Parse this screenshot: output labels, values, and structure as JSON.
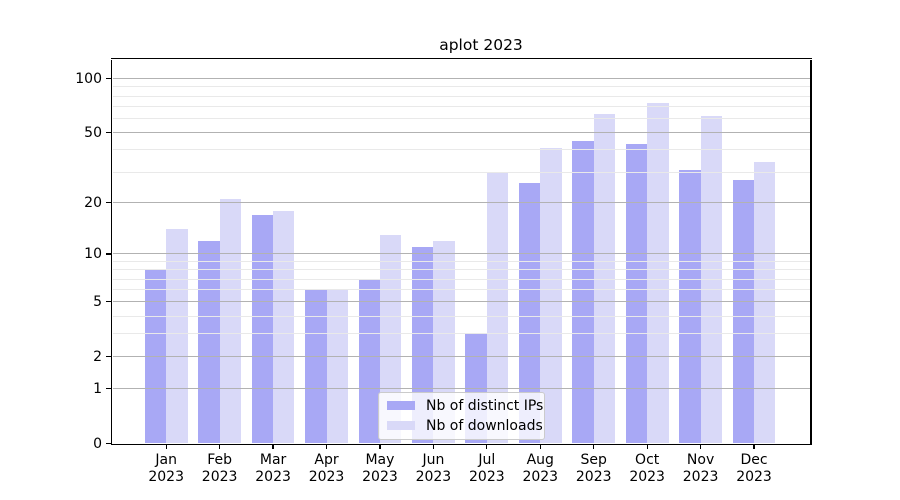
{
  "figure": {
    "background": "#ffffff"
  },
  "chart_data": {
    "type": "bar",
    "title": "aplot 2023",
    "categories": [
      "Jan",
      "Feb",
      "Mar",
      "Apr",
      "May",
      "Jun",
      "Jul",
      "Aug",
      "Sep",
      "Oct",
      "Nov",
      "Dec"
    ],
    "x_tick_second_line": "2023",
    "series": [
      {
        "name": "Nb of distinct IPs",
        "color": "#a8a8f5",
        "values": [
          8,
          12,
          17,
          6,
          7,
          11,
          3,
          26,
          45,
          43,
          31,
          27
        ]
      },
      {
        "name": "Nb of downloads",
        "color": "#d9d9f8",
        "values": [
          14,
          21,
          18,
          6,
          13,
          12,
          30,
          41,
          64,
          73,
          62,
          34
        ]
      }
    ],
    "yscale": "log1p",
    "ylim": [
      0,
      130
    ],
    "yticks": [
      0,
      1,
      2,
      5,
      10,
      20,
      50,
      100
    ],
    "minor_yticks": [
      3,
      4,
      6,
      7,
      8,
      9,
      30,
      40,
      60,
      70,
      80,
      90
    ],
    "grid": true,
    "legend_position": "lower center",
    "colors": {
      "grid_major": "#b2b2b2",
      "grid_minor": "#e9e9e9",
      "spine": "#000000",
      "text": "#000000"
    }
  }
}
